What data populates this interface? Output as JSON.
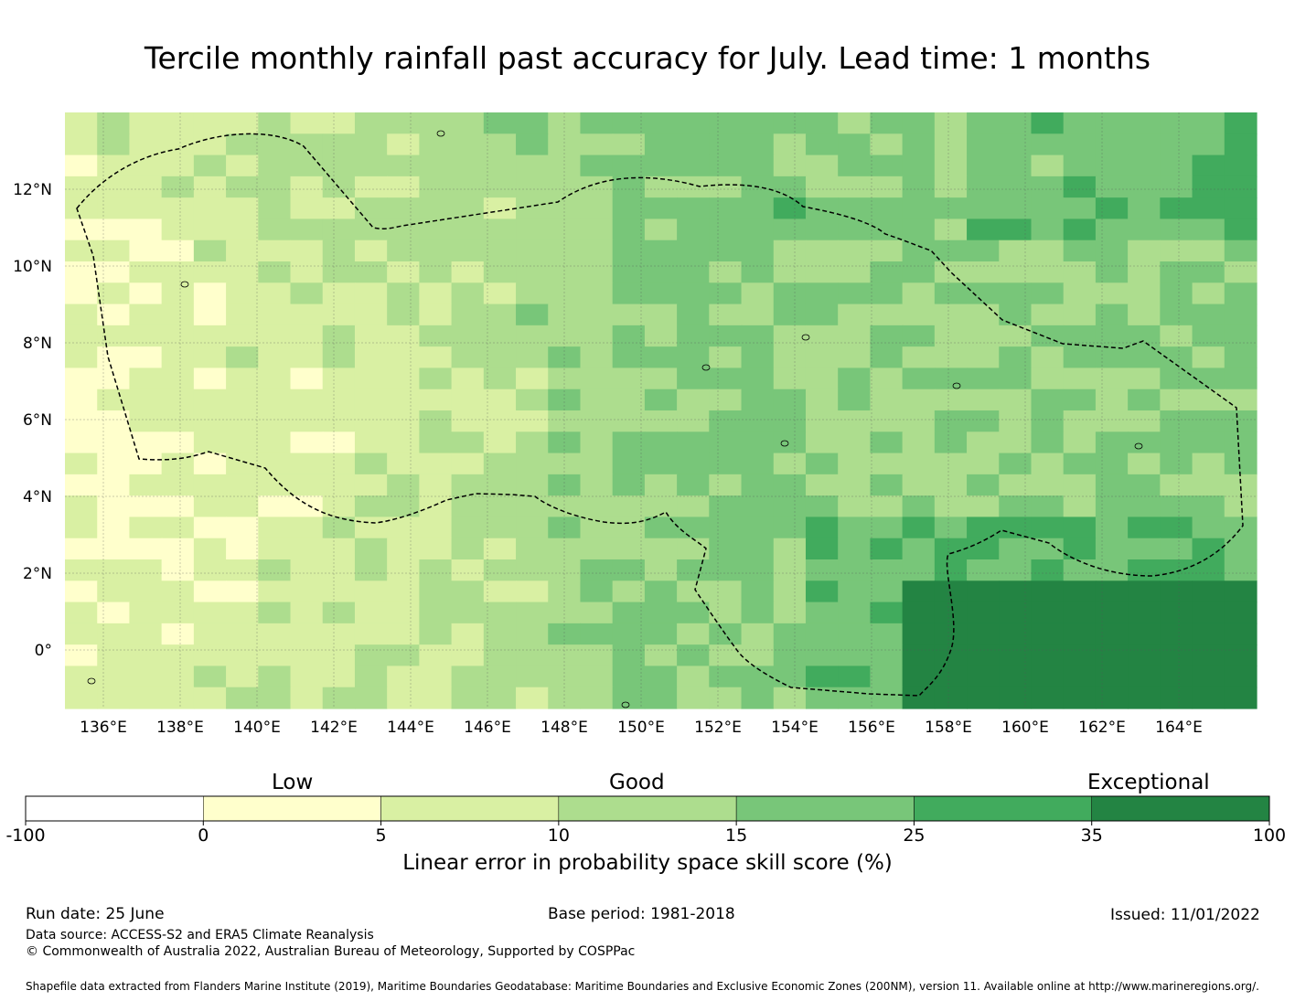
{
  "title": "Tercile monthly rainfall past accuracy for July. Lead time: 1 months",
  "map": {
    "lon_range": [
      135.0,
      166.0
    ],
    "lat_range": [
      -1.5,
      14.0
    ],
    "lon_ticks": [
      "136°E",
      "138°E",
      "140°E",
      "142°E",
      "144°E",
      "146°E",
      "148°E",
      "150°E",
      "152°E",
      "154°E",
      "156°E",
      "158°E",
      "160°E",
      "162°E",
      "164°E"
    ],
    "lat_ticks": [
      "12°N",
      "10°N",
      "8°N",
      "6°N",
      "4°N",
      "2°N",
      "0°"
    ],
    "grid": true
  },
  "legend": {
    "categories": [
      {
        "label": "Low"
      },
      {
        "label": "Good"
      },
      {
        "label": "Exceptional"
      }
    ],
    "bins": [
      {
        "from": "-100",
        "to": "0",
        "color": "#ffffff"
      },
      {
        "from": "0",
        "to": "5",
        "color": "#ffffcc"
      },
      {
        "from": "5",
        "to": "10",
        "color": "#d9f0a3"
      },
      {
        "from": "10",
        "to": "15",
        "color": "#addd8e"
      },
      {
        "from": "15",
        "to": "25",
        "color": "#78c679"
      },
      {
        "from": "25",
        "to": "35",
        "color": "#41ab5d"
      },
      {
        "from": "35",
        "to": "100",
        "color": "#238443"
      }
    ],
    "tick_labels": [
      "-100",
      "0",
      "5",
      "10",
      "15",
      "25",
      "35",
      "100"
    ],
    "label": "Linear error in probability space skill score (%)"
  },
  "footer": {
    "run_date": "Run date: 25 June",
    "base_period": "Base period: 1981-2018",
    "issued": "Issued: 11/01/2022",
    "data_source": "Data source: ACCESS-S2 and ERA5 Climate Reanalysis",
    "copyright": "© Commonwealth of Australia 2022, Australian Bureau of Meteorology, Supported by COSPPac",
    "shapefile": "Shapefile data extracted from Flanders Marine Institute (2019), Maritime Boundaries Geodatabase: Maritime Boundaries and Exclusive Economic Zones (200NM), version 11. Available online at http://www.marineregions.org/."
  }
}
